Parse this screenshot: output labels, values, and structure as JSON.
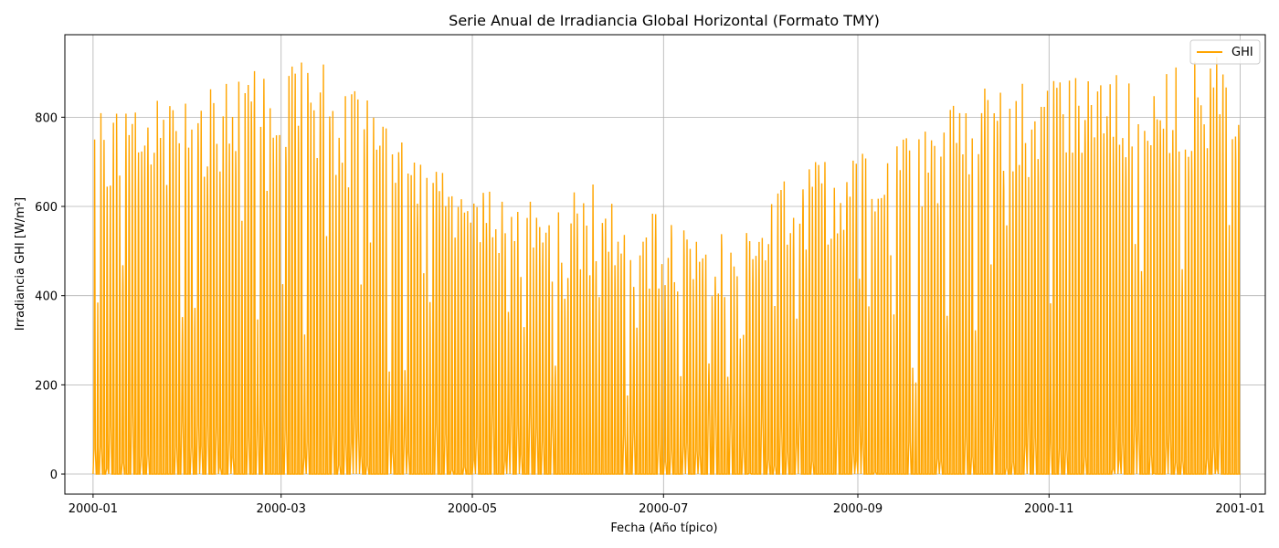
{
  "chart_data": {
    "type": "line",
    "title": "Serie Anual de Irradiancia Global Horizontal (Formato TMY)",
    "xlabel": "Fecha (Año típico)",
    "ylabel": "Irradiancia GHI [W/m²]",
    "xlim": [
      "1999-12-23",
      "2001-01-09"
    ],
    "ylim": [
      -45,
      985
    ],
    "x_ticks": [
      {
        "date": "2000-01-01",
        "label": "2000-01"
      },
      {
        "date": "2000-03-01",
        "label": "2000-03"
      },
      {
        "date": "2000-05-01",
        "label": "2000-05"
      },
      {
        "date": "2000-07-01",
        "label": "2000-07"
      },
      {
        "date": "2000-09-01",
        "label": "2000-09"
      },
      {
        "date": "2000-11-01",
        "label": "2000-11"
      },
      {
        "date": "2001-01-01",
        "label": "2001-01"
      }
    ],
    "y_ticks": [
      0,
      200,
      400,
      600,
      800
    ],
    "grid": true,
    "legend": {
      "position": "top-right"
    },
    "series": [
      {
        "name": "GHI",
        "color": "#FFA500",
        "daily_peak_monthly": [
          {
            "month": "2000-01",
            "min_peak": 600,
            "max_peak": 830
          },
          {
            "month": "2000-02",
            "min_peak": 640,
            "max_peak": 895
          },
          {
            "month": "2000-03",
            "min_peak": 600,
            "max_peak": 940
          },
          {
            "month": "2000-04",
            "min_peak": 560,
            "max_peak": 690
          },
          {
            "month": "2000-05",
            "min_peak": 430,
            "max_peak": 610
          },
          {
            "month": "2000-06",
            "min_peak": 360,
            "max_peak": 665
          },
          {
            "month": "2000-07",
            "min_peak": 330,
            "max_peak": 520
          },
          {
            "month": "2000-08",
            "min_peak": 450,
            "max_peak": 700
          },
          {
            "month": "2000-09",
            "min_peak": 530,
            "max_peak": 775
          },
          {
            "month": "2000-10",
            "min_peak": 640,
            "max_peak": 885
          },
          {
            "month": "2000-11",
            "min_peak": 680,
            "max_peak": 895
          },
          {
            "month": "2000-12",
            "min_peak": 690,
            "max_peak": 945
          }
        ]
      }
    ]
  }
}
